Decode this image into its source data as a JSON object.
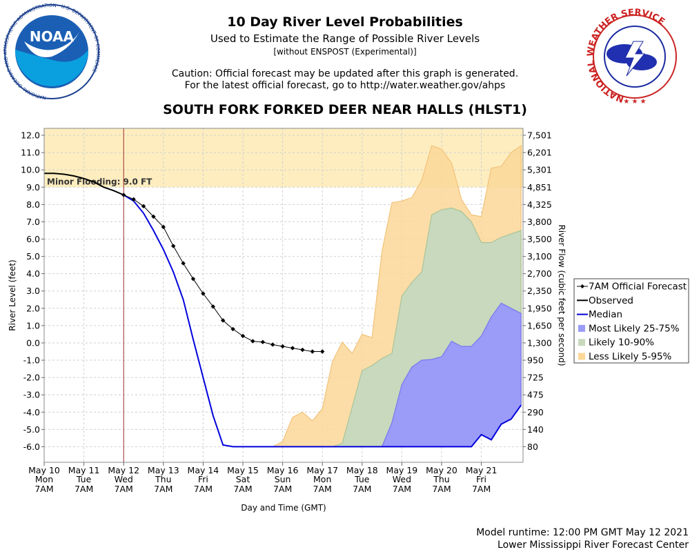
{
  "header": {
    "title": "10 Day River Level Probabilities",
    "subtitle": "Used to Estimate the Range of Possible River Levels",
    "note": "[without ENSPOST (Experimental)]",
    "caution_line1": "Caution: Official forecast may be updated after this graph is generated.",
    "caution_line2": "For the latest official forecast, go to http://water.weather.gov/ahps",
    "station": "SOUTH FORK FORKED DEER NEAR HALLS (HLST1)"
  },
  "logos": {
    "noaa_text": "NOAA",
    "noaa_ring": "NATIONAL OCEANIC AND ATMOSPHERIC ADMINISTRATION · U.S. DEPARTMENT OF COMMERCE",
    "nws_ring": "NATIONAL WEATHER SERVICE"
  },
  "footer": {
    "runtime": "Model runtime: 12:00 PM GMT May 12 2021",
    "center": "Lower Mississippi River Forecast Center"
  },
  "colors": {
    "flood_band": "#fdedbf",
    "less_likely": "#fcd798",
    "likely": "#c8d9bd",
    "most_likely": "#9b9bf8",
    "median": "#0000dd",
    "observed": "#000000",
    "forecast": "#000000",
    "now_line": "#a03030"
  },
  "chart_data": {
    "type": "line",
    "xlabel": "Day and Time (GMT)",
    "ylabel": "River Level (feet)",
    "y2label": "River Flow (cubic feet per second)",
    "ylim": [
      -6.9,
      12.4
    ],
    "xlim_days": [
      0,
      12
    ],
    "yticks": [
      12,
      11,
      10,
      9,
      8,
      7,
      6,
      5,
      4,
      3,
      2,
      1,
      0,
      -1,
      -2,
      -3,
      -4,
      -5,
      -6
    ],
    "ytick_labels": [
      "12.0",
      "11.0",
      "10.0",
      "9.0",
      "8.0",
      "7.0",
      "6.0",
      "5.0",
      "4.0",
      "3.0",
      "2.0",
      "1.0",
      "0.0",
      "-1.0",
      "-2.0",
      "-3.0",
      "-4.0",
      "-5.0",
      "-6.0"
    ],
    "y2tick_labels": [
      "7,501",
      "6,201",
      "5,301",
      "4,851",
      "4,325",
      "3,800",
      "3,500",
      "3,100",
      "2,700",
      "2,350",
      "1,950",
      "1,650",
      "1,300",
      "950",
      "725",
      "475",
      "290",
      "140",
      "80"
    ],
    "xticks": [
      {
        "d": 0,
        "date": "May 10",
        "dow": "Mon",
        "time": "7AM"
      },
      {
        "d": 1,
        "date": "May 11",
        "dow": "Tue",
        "time": "7AM"
      },
      {
        "d": 2,
        "date": "May 12",
        "dow": "Wed",
        "time": "7AM"
      },
      {
        "d": 3,
        "date": "May 13",
        "dow": "Thu",
        "time": "7AM"
      },
      {
        "d": 4,
        "date": "May 14",
        "dow": "Fri",
        "time": "7AM"
      },
      {
        "d": 5,
        "date": "May 15",
        "dow": "Sat",
        "time": "7AM"
      },
      {
        "d": 6,
        "date": "May 16",
        "dow": "Sun",
        "time": "7AM"
      },
      {
        "d": 7,
        "date": "May 17",
        "dow": "Mon",
        "time": "7AM"
      },
      {
        "d": 8,
        "date": "May 18",
        "dow": "Tue",
        "time": "7AM"
      },
      {
        "d": 9,
        "date": "May 19",
        "dow": "Wed",
        "time": "7AM"
      },
      {
        "d": 10,
        "date": "May 20",
        "dow": "Thu",
        "time": "7AM"
      },
      {
        "d": 11,
        "date": "May 21",
        "dow": "Fri",
        "time": "7AM"
      }
    ],
    "now_day": 2,
    "flood": {
      "label": "Minor Flooding: 9.0 FT",
      "stage": 9.0
    },
    "legend": {
      "placement": "right",
      "items": [
        {
          "key": "forecast",
          "label": "7AM Official Forecast"
        },
        {
          "key": "observed",
          "label": "Observed"
        },
        {
          "key": "median",
          "label": "Median"
        },
        {
          "key": "most_likely",
          "label": "Most Likely 25-75%"
        },
        {
          "key": "likely",
          "label": "Likely 10-90%"
        },
        {
          "key": "less_likely",
          "label": "Less Likely 5-95%"
        }
      ]
    },
    "observed": [
      [
        0,
        9.8
      ],
      [
        0.25,
        9.8
      ],
      [
        0.5,
        9.75
      ],
      [
        0.75,
        9.65
      ],
      [
        1.0,
        9.5
      ],
      [
        1.25,
        9.3
      ],
      [
        1.5,
        9.0
      ],
      [
        1.75,
        8.8
      ],
      [
        2.0,
        8.55
      ]
    ],
    "forecast": [
      [
        2.0,
        8.55
      ],
      [
        2.25,
        8.3
      ],
      [
        2.5,
        7.9
      ],
      [
        2.75,
        7.3
      ],
      [
        3.0,
        6.7
      ],
      [
        3.25,
        5.6
      ],
      [
        3.5,
        4.6
      ],
      [
        3.75,
        3.7
      ],
      [
        4.0,
        2.85
      ],
      [
        4.25,
        2.1
      ],
      [
        4.5,
        1.3
      ],
      [
        4.75,
        0.8
      ],
      [
        5.0,
        0.4
      ],
      [
        5.25,
        0.1
      ],
      [
        5.5,
        0.05
      ],
      [
        5.75,
        -0.1
      ],
      [
        6.0,
        -0.2
      ],
      [
        6.25,
        -0.3
      ],
      [
        6.5,
        -0.4
      ],
      [
        6.75,
        -0.5
      ],
      [
        7.0,
        -0.5
      ]
    ],
    "median": [
      [
        2.0,
        8.55
      ],
      [
        2.25,
        8.2
      ],
      [
        2.5,
        7.5
      ],
      [
        2.75,
        6.5
      ],
      [
        3.0,
        5.4
      ],
      [
        3.25,
        4.1
      ],
      [
        3.5,
        2.5
      ],
      [
        3.75,
        0.2
      ],
      [
        4.0,
        -2.0
      ],
      [
        4.25,
        -4.2
      ],
      [
        4.5,
        -5.9
      ],
      [
        4.75,
        -6.0
      ],
      [
        5.0,
        -6.0
      ],
      [
        6.0,
        -6.0
      ],
      [
        7.0,
        -6.0
      ],
      [
        8.0,
        -6.0
      ],
      [
        9.0,
        -6.0
      ],
      [
        10.0,
        -6.0
      ],
      [
        10.75,
        -6.0
      ],
      [
        11.0,
        -5.3
      ],
      [
        11.25,
        -5.6
      ],
      [
        11.5,
        -4.7
      ],
      [
        11.75,
        -4.4
      ],
      [
        12.0,
        -3.6
      ]
    ],
    "band_most_likely": {
      "x": [
        8.5,
        8.75,
        9.0,
        9.25,
        9.5,
        9.75,
        10.0,
        10.25,
        10.5,
        10.75,
        11.0,
        11.25,
        11.5,
        11.75,
        12.0
      ],
      "low": [
        -6.0,
        -6.0,
        -6.0,
        -6.0,
        -6.0,
        -6.0,
        -6.0,
        -6.0,
        -6.0,
        -6.0,
        -5.3,
        -5.6,
        -4.7,
        -4.4,
        -3.6
      ],
      "high": [
        -6.0,
        -4.6,
        -2.4,
        -1.4,
        -1.0,
        -0.95,
        -0.8,
        0.1,
        -0.2,
        -0.2,
        0.4,
        1.5,
        2.3,
        2.0,
        1.7
      ]
    },
    "band_likely": {
      "x": [
        7.25,
        7.5,
        7.75,
        8.0,
        8.25,
        8.5,
        8.75,
        9.0,
        9.25,
        9.5,
        9.75,
        10.0,
        10.25,
        10.5,
        10.75,
        11.0,
        11.25,
        11.5,
        11.75,
        12.0
      ],
      "low": [
        -6.0,
        -6.0,
        -6.0,
        -6.0,
        -6.0,
        -6.0,
        -6.0,
        -6.0,
        -6.0,
        -6.0,
        -6.0,
        -6.0,
        -6.0,
        -6.0,
        -6.0,
        -5.3,
        -5.6,
        -4.7,
        -4.4,
        -3.6
      ],
      "high": [
        -6.0,
        -5.8,
        -3.7,
        -1.6,
        -1.3,
        -0.9,
        -0.6,
        2.7,
        3.5,
        4.1,
        7.4,
        7.7,
        7.8,
        7.6,
        7.0,
        5.8,
        5.8,
        6.1,
        6.3,
        6.5
      ]
    },
    "band_less_likely": {
      "x": [
        5.75,
        6.0,
        6.25,
        6.5,
        6.75,
        7.0,
        7.25,
        7.5,
        7.75,
        8.0,
        8.25,
        8.5,
        8.75,
        9.0,
        9.25,
        9.5,
        9.75,
        10.0,
        10.25,
        10.5,
        10.75,
        11.0,
        11.25,
        11.5,
        11.75,
        12.0
      ],
      "low": [
        -6.0,
        -6.0,
        -6.0,
        -6.0,
        -6.0,
        -6.0,
        -6.0,
        -6.0,
        -6.0,
        -6.0,
        -6.0,
        -6.0,
        -6.0,
        -6.0,
        -6.0,
        -6.0,
        -6.0,
        -6.0,
        -6.0,
        -6.0,
        -6.0,
        -5.3,
        -5.6,
        -4.7,
        -4.4,
        -3.6
      ],
      "high": [
        -6.0,
        -5.7,
        -4.3,
        -4.0,
        -4.5,
        -3.8,
        -1.1,
        0.05,
        -0.6,
        0.5,
        0.3,
        5.3,
        8.1,
        8.2,
        8.4,
        9.4,
        11.4,
        11.2,
        10.4,
        8.3,
        7.4,
        7.3,
        10.1,
        10.2,
        11.0,
        11.4
      ]
    }
  }
}
